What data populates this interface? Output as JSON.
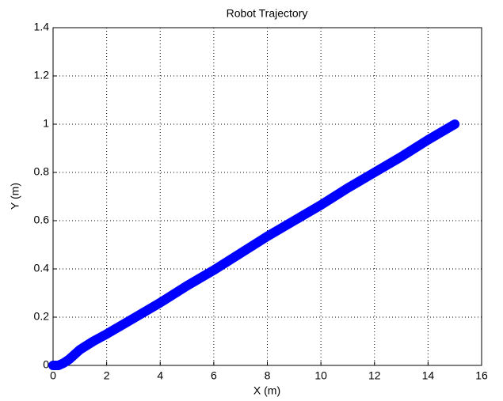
{
  "chart_data": {
    "type": "line",
    "title": "Robot Trajectory",
    "x_label": "X (m)",
    "y_label": "Y (m)",
    "x": [
      0,
      0.2,
      0.4,
      0.6,
      0.8,
      1,
      1.5,
      2,
      3,
      4,
      5,
      6,
      7,
      8,
      9,
      10,
      11,
      12,
      13,
      14,
      15
    ],
    "series": [
      {
        "color": "#0000ff",
        "values": [
          0,
          0,
          0.01,
          0.025,
          0.045,
          0.065,
          0.1,
          0.13,
          0.195,
          0.26,
          0.33,
          0.395,
          0.465,
          0.535,
          0.6,
          0.665,
          0.735,
          0.8,
          0.865,
          0.935,
          1
        ]
      }
    ],
    "xlim": [
      0,
      16
    ],
    "xticks": [
      0,
      2,
      4,
      6,
      8,
      10,
      12,
      14,
      16
    ],
    "ylim": [
      0,
      1.4
    ],
    "yticks": [
      0,
      0.2,
      0.4,
      0.6,
      0.8,
      1,
      1.2,
      1.4
    ],
    "grid": true
  }
}
